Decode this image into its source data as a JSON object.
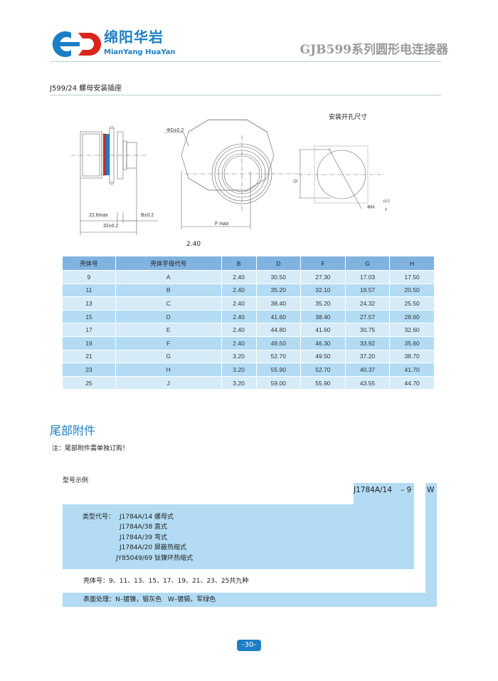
{
  "header": {
    "logo_cn": "绵阳华岩",
    "logo_en": "MianYang HuaYan",
    "title": "GJB599系列圆形电连接器"
  },
  "product": {
    "subtitle": "J599/24 螺母安装插座",
    "panel_cutout_title": "安装开孔尺寸",
    "dims": {
      "d": "ΦD±0.2",
      "len1": "22.6max",
      "b": "B±0.2",
      "len2": "32±0.2",
      "f": "F max",
      "g": "G",
      "g_tol": "+0.2 0",
      "h": "ΦH",
      "h_tol_up": "+0.2",
      "h_tol_dn": "0"
    },
    "caption_value": "2.40"
  },
  "table": {
    "headers": [
      "壳体号",
      "壳体字母代号",
      "B",
      "D",
      "F",
      "G",
      "H"
    ],
    "rows": [
      [
        "9",
        "A",
        "2.40",
        "30.50",
        "27.30",
        "17.03",
        "17.50"
      ],
      [
        "11",
        "B",
        "2.40",
        "35.20",
        "32.10",
        "19.57",
        "20.50"
      ],
      [
        "13",
        "C",
        "2.40",
        "38.40",
        "35.20",
        "24.32",
        "25.50"
      ],
      [
        "15",
        "D",
        "2.40",
        "41.60",
        "38.40",
        "27.57",
        "28.60"
      ],
      [
        "17",
        "E",
        "2.40",
        "44.80",
        "41.60",
        "30.75",
        "32.60"
      ],
      [
        "19",
        "F",
        "2.40",
        "49.50",
        "46.30",
        "33.92",
        "35.60"
      ],
      [
        "21",
        "G",
        "3.20",
        "52.70",
        "49.50",
        "37.20",
        "38.70"
      ],
      [
        "23",
        "H",
        "3.20",
        "55.90",
        "52.70",
        "40.37",
        "41.70"
      ],
      [
        "25",
        "J",
        "3.20",
        "59.00",
        "55.90",
        "43.55",
        "44.70"
      ]
    ]
  },
  "accessories": {
    "title": "尾部附件",
    "note": "注：尾部附件需单独订购！",
    "example_label": "型号示例",
    "code": {
      "part1": "J1784A/14",
      "part2": "– 9",
      "part3": "W"
    },
    "type_label": "类型代号：",
    "types": [
      "J1784A/14 螺母式",
      "J1784A/38 直式",
      "J1784A/39 弯式",
      "J1784A/20 屏蔽热缩式",
      "JY85049/69 钛镍环热缩式"
    ],
    "shell": "壳体号：9、11、13、15、17、19、21、23、25共九种",
    "finish": "表面处理：N–镀镍，银灰色   W–镀镉，军绿色"
  },
  "footer": {
    "page": "-30-"
  },
  "colors": {
    "brand_blue": "#1a7fc4",
    "logo_red": "#d9261c",
    "header_row": "#80b3e0",
    "row_light": "#d6ebf8",
    "row_dark": "#b3dcf4"
  }
}
